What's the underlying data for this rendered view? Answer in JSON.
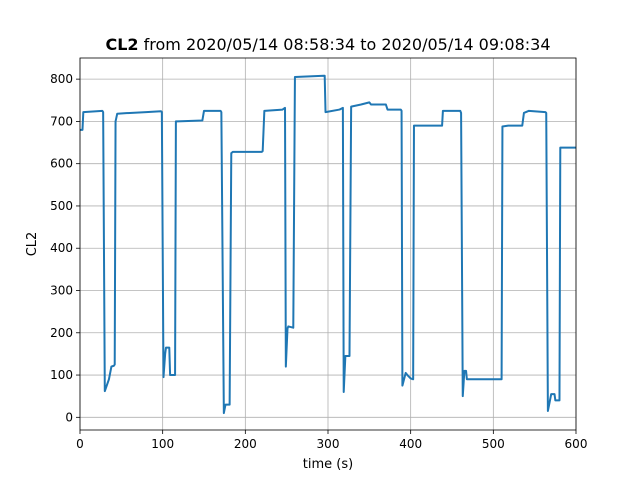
{
  "chart_data": {
    "type": "line",
    "title_name": "CL2",
    "title": "from 2020/05/14 08:58:34 to 2020/05/14 09:08:34",
    "xlabel": "time (s)",
    "ylabel": "CL2",
    "xlim": [
      0,
      600
    ],
    "ylim": [
      -30,
      850
    ],
    "xticks": [
      0,
      100,
      200,
      300,
      400,
      500,
      600
    ],
    "yticks": [
      0,
      100,
      200,
      300,
      400,
      500,
      600,
      700,
      800
    ],
    "grid": true,
    "color": "#1f77b4",
    "x": [
      0,
      3,
      4,
      27,
      28,
      30,
      35,
      38,
      41,
      42,
      43,
      45,
      60,
      80,
      98,
      99,
      101,
      103,
      104,
      108,
      109,
      115,
      116,
      118,
      148,
      150,
      170,
      171,
      174,
      176,
      181,
      183,
      185,
      220,
      221,
      223,
      245,
      248,
      249,
      251,
      252,
      258,
      260,
      295,
      296,
      297,
      314,
      318,
      319,
      321,
      326,
      328,
      340,
      350,
      352,
      370,
      372,
      388,
      389,
      390,
      392,
      394,
      396,
      400,
      403,
      404,
      420,
      438,
      439,
      460,
      461,
      463,
      465,
      467,
      468,
      474,
      510,
      511,
      518,
      535,
      537,
      543,
      563,
      564,
      566,
      568,
      570,
      574,
      575,
      580,
      581,
      600
    ],
    "values": [
      680,
      680,
      722,
      725,
      722,
      62,
      90,
      120,
      122,
      125,
      700,
      718,
      720,
      722,
      724,
      722,
      95,
      150,
      165,
      165,
      100,
      100,
      700,
      700,
      702,
      725,
      725,
      722,
      10,
      30,
      30,
      625,
      628,
      628,
      630,
      725,
      728,
      732,
      120,
      210,
      215,
      212,
      805,
      808,
      808,
      722,
      728,
      732,
      60,
      145,
      145,
      735,
      740,
      745,
      740,
      740,
      728,
      728,
      725,
      75,
      90,
      105,
      100,
      92,
      90,
      690,
      690,
      690,
      725,
      725,
      720,
      50,
      110,
      110,
      90,
      90,
      90,
      688,
      690,
      690,
      720,
      725,
      722,
      720,
      15,
      35,
      55,
      55,
      40,
      40,
      638,
      638
    ]
  }
}
